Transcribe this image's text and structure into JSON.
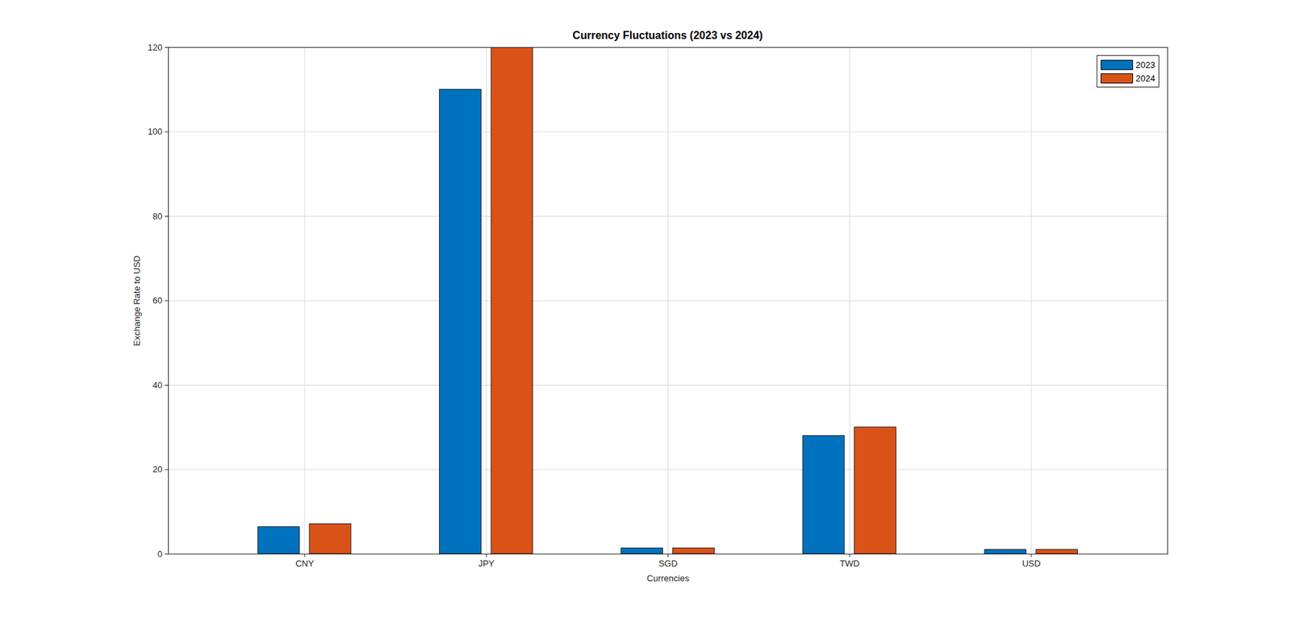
{
  "chart_data": {
    "type": "bar",
    "title": "Currency Fluctuations (2023 vs 2024)",
    "x_label": "Currencies",
    "y_label": "Exchange Rate to USD",
    "categories": [
      "CNY",
      "JPY",
      "SGD",
      "TWD",
      "USD"
    ],
    "series": [
      {
        "name": "2023",
        "color": "#0072bd",
        "values": [
          6.4,
          110,
          1.35,
          28,
          1
        ]
      },
      {
        "name": "2024",
        "color": "#d95319",
        "values": [
          7.1,
          120,
          1.35,
          30,
          1
        ]
      }
    ],
    "ylim": [
      0,
      120
    ],
    "yticks": [
      0,
      20,
      40,
      60,
      80,
      100,
      120
    ],
    "grid": true,
    "legend": "northeast"
  }
}
